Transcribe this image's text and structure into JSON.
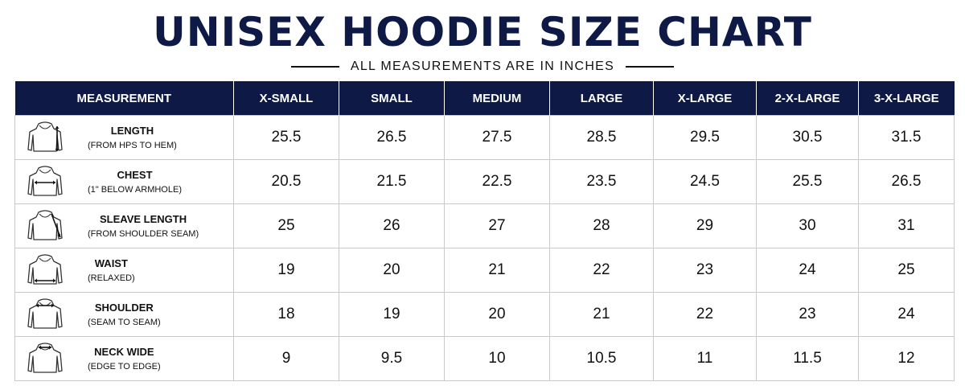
{
  "title": "UNISEX HOODIE SIZE CHART",
  "subtitle": "ALL MEASUREMENTS ARE IN INCHES",
  "table": {
    "headers": [
      "MEASUREMENT",
      "X-SMALL",
      "SMALL",
      "MEDIUM",
      "LARGE",
      "X-LARGE",
      "2-X-LARGE",
      "3-X-LARGE"
    ],
    "rows": [
      {
        "name": "LENGTH",
        "sub": "(FROM HPS TO HEM)",
        "icon": "hoodie-length-icon",
        "values": [
          "25.5",
          "26.5",
          "27.5",
          "28.5",
          "29.5",
          "30.5",
          "31.5"
        ]
      },
      {
        "name": "CHEST",
        "sub": "(1\" BELOW ARMHOLE)",
        "icon": "hoodie-chest-icon",
        "values": [
          "20.5",
          "21.5",
          "22.5",
          "23.5",
          "24.5",
          "25.5",
          "26.5"
        ]
      },
      {
        "name": "SLEAVE LENGTH",
        "sub": "(FROM SHOULDER SEAM)",
        "icon": "hoodie-sleeve-icon",
        "values": [
          "25",
          "26",
          "27",
          "28",
          "29",
          "30",
          "31"
        ]
      },
      {
        "name": "WAIST",
        "sub": "(RELAXED)",
        "icon": "hoodie-waist-icon",
        "values": [
          "19",
          "20",
          "21",
          "22",
          "23",
          "24",
          "25"
        ]
      },
      {
        "name": "SHOULDER",
        "sub": "(SEAM TO SEAM)",
        "icon": "hoodie-shoulder-icon",
        "values": [
          "18",
          "19",
          "20",
          "21",
          "22",
          "23",
          "24"
        ]
      },
      {
        "name": "NECK WIDE",
        "sub": "(EDGE TO EDGE)",
        "icon": "hoodie-neck-icon",
        "values": [
          "9",
          "9.5",
          "10",
          "10.5",
          "11",
          "11.5",
          "12"
        ]
      }
    ]
  },
  "colors": {
    "header_bg": "#0e1a45",
    "title": "#0e1a45",
    "border": "#c9c9c9"
  }
}
